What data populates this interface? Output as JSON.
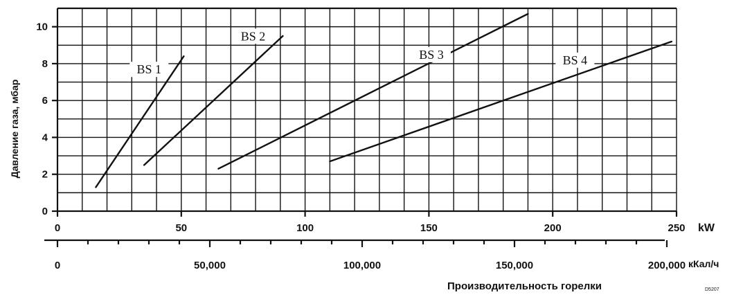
{
  "chart_data": {
    "type": "line",
    "title": "",
    "ylabel": "Давление газа, мбар",
    "xlabel": "Производительность горелки",
    "xunit": "kW",
    "x2unit": "кКал/ч",
    "code": "D5207",
    "xlim": [
      0,
      250
    ],
    "ylim": [
      0,
      11
    ],
    "grid": true,
    "x_ticks": [
      0,
      50,
      100,
      150,
      200,
      250
    ],
    "x_tick_labels": [
      "0",
      "50",
      "100",
      "150",
      "200",
      "250"
    ],
    "x2_ticks": [
      0,
      50000,
      100000,
      150000,
      200000
    ],
    "x2_tick_labels": [
      "0",
      "50,000",
      "100,000",
      "150,000",
      "200,000"
    ],
    "y_ticks": [
      0,
      2,
      4,
      6,
      8,
      10
    ],
    "y_tick_labels": [
      "0",
      "2",
      "4",
      "6",
      "8",
      "10"
    ],
    "series": [
      {
        "name": "BS 1",
        "x": [
          15.5,
          51
        ],
        "y": [
          1.3,
          8.4
        ]
      },
      {
        "name": "BS 2",
        "x": [
          35,
          91
        ],
        "y": [
          2.5,
          9.5
        ]
      },
      {
        "name": "BS 3",
        "x": [
          65,
          190
        ],
        "y": [
          2.3,
          10.7
        ]
      },
      {
        "name": "BS 4",
        "x": [
          110,
          248
        ],
        "y": [
          2.7,
          9.2
        ]
      }
    ],
    "series_label_pos": [
      {
        "x": 37,
        "y": 7.5
      },
      {
        "x": 79,
        "y": 9.3
      },
      {
        "x": 151,
        "y": 8.3
      },
      {
        "x": 209,
        "y": 8.0
      }
    ]
  }
}
